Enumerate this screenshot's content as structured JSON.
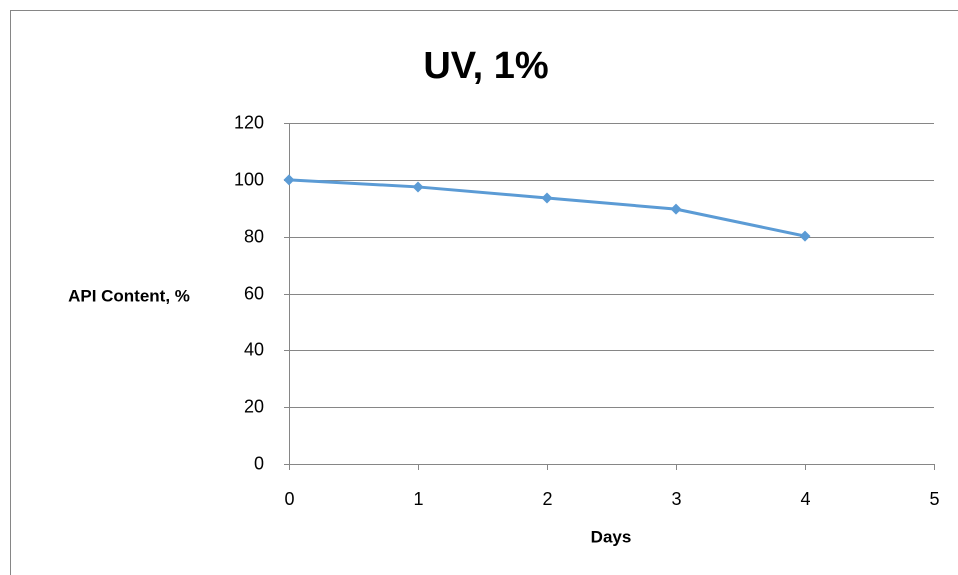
{
  "chart_data": {
    "type": "line",
    "title": "UV, 1%",
    "x_label": "Days",
    "y_label": "API Content, %",
    "series": [
      {
        "name": "UV, 1%",
        "color": "#5b9bd5",
        "x": [
          0,
          1,
          2,
          3,
          4
        ],
        "values": [
          100,
          97.5,
          93.6,
          89.7,
          80.2
        ]
      }
    ],
    "xlim": [
      0,
      5
    ],
    "xticks": [
      0,
      1,
      2,
      3,
      4,
      5
    ],
    "ylim": [
      0,
      120
    ],
    "yticks": [
      0,
      20,
      40,
      60,
      80,
      100,
      120
    ],
    "grid": true,
    "marker": "diamond"
  }
}
